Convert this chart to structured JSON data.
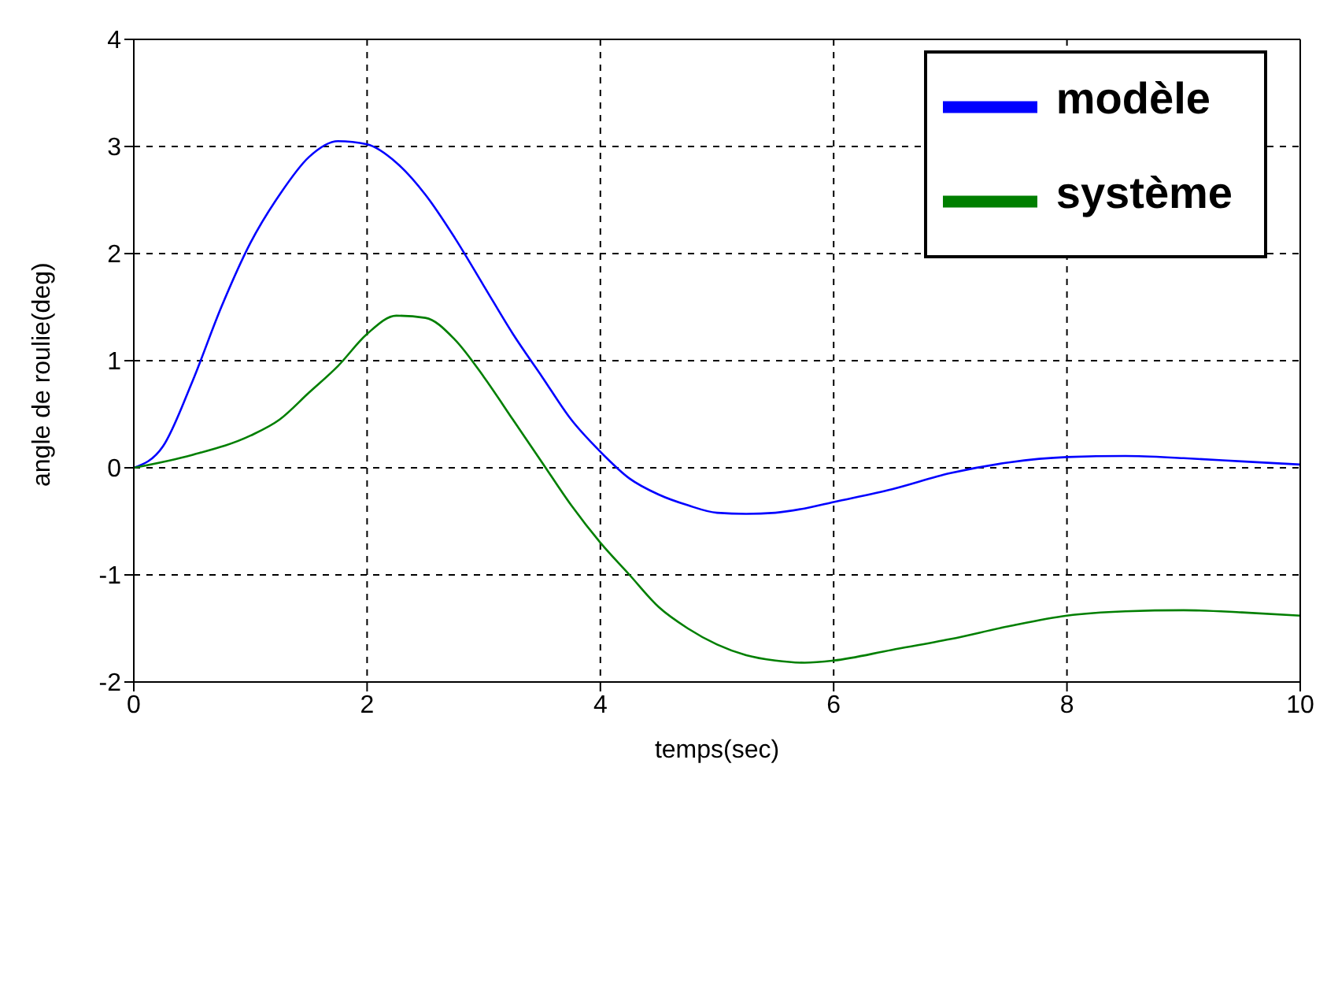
{
  "chart_data": {
    "type": "line",
    "xlabel": "temps(sec)",
    "ylabel": "angle de roulie(deg)",
    "xlim": [
      0,
      10
    ],
    "xticks": [
      0,
      2,
      4,
      6,
      8,
      10
    ],
    "ylim": [
      -2,
      4
    ],
    "yticks": [
      -2,
      -1,
      0,
      1,
      2,
      3,
      4
    ],
    "grid": true,
    "legend": "top right",
    "line_style": "solid",
    "marker": "none",
    "series": [
      {
        "name": "modèle",
        "color": "#0000ff",
        "x": [
          0,
          0.25,
          0.5,
          0.75,
          1,
          1.25,
          1.5,
          1.75,
          2,
          2.25,
          2.5,
          2.75,
          3,
          3.25,
          3.5,
          3.75,
          4,
          4.25,
          4.5,
          4.75,
          5,
          5.25,
          5.5,
          5.75,
          6,
          6.5,
          7,
          7.5,
          8,
          8.5,
          9,
          9.5,
          10
        ],
        "values": [
          0,
          0.2,
          0.8,
          1.5,
          2.1,
          2.55,
          2.9,
          3.05,
          3.02,
          2.85,
          2.55,
          2.15,
          1.7,
          1.25,
          0.85,
          0.45,
          0.15,
          -0.1,
          -0.25,
          -0.35,
          -0.42,
          -0.43,
          -0.42,
          -0.38,
          -0.32,
          -0.2,
          -0.05,
          0.05,
          0.1,
          0.11,
          0.09,
          0.06,
          0.03
        ]
      },
      {
        "name": "système",
        "color": "#007f00",
        "x": [
          0,
          0.5,
          1,
          1.25,
          1.5,
          1.75,
          2,
          2.25,
          2.5,
          2.75,
          3,
          3.25,
          3.5,
          3.75,
          4,
          4.25,
          4.5,
          4.75,
          5,
          5.25,
          5.5,
          5.75,
          6,
          6.5,
          7,
          7.5,
          8,
          8.5,
          9,
          9.5,
          10
        ],
        "values": [
          0,
          0.12,
          0.3,
          0.45,
          0.7,
          0.95,
          1.25,
          1.42,
          1.4,
          1.2,
          0.85,
          0.45,
          0.05,
          -0.35,
          -0.7,
          -1.0,
          -1.3,
          -1.5,
          -1.65,
          -1.75,
          -1.8,
          -1.82,
          -1.8,
          -1.7,
          -1.6,
          -1.48,
          -1.38,
          -1.34,
          -1.33,
          -1.35,
          -1.38
        ]
      }
    ]
  }
}
